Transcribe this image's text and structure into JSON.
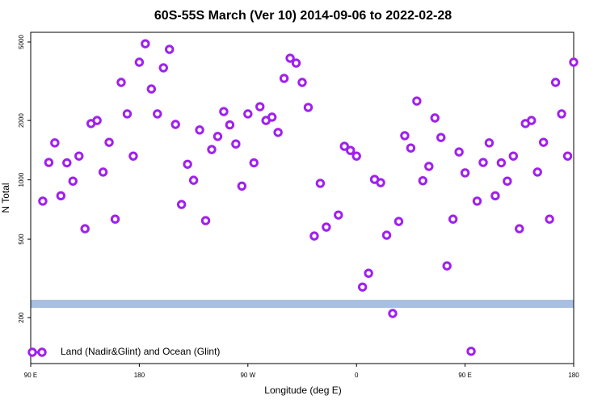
{
  "chart_data": {
    "type": "scatter",
    "title": "60S-55S March (Ver 10)   2014-09-06 to 2022-02-28",
    "x_label": "Longitude (deg E)",
    "y_label": "N Total",
    "xlim": [
      90,
      540
    ],
    "xticks": [
      {
        "value": 90,
        "label": "90 E"
      },
      180,
      {
        "value": 270,
        "label": "90 W"
      },
      {
        "value": 360,
        "label": "0"
      },
      {
        "value": 450,
        "label": "90 E"
      },
      {
        "value": 540,
        "label": "180"
      }
    ],
    "ylim": [
      117,
      5600
    ],
    "log_y": true,
    "yticks": [
      200,
      500,
      1000,
      2000,
      5000
    ],
    "legend": "bottom-left",
    "band": {
      "value": 235,
      "color": "#a7bfe0"
    },
    "series": [
      {
        "name": "Land (Nadir&Glint) and Ocean (Glint)",
        "color": "#a020f0",
        "x": [
          100,
          105,
          110,
          115,
          120,
          125,
          130,
          135,
          140,
          145,
          150,
          155,
          160,
          165,
          170,
          175,
          180,
          185,
          190,
          195,
          200,
          205,
          210,
          215,
          220,
          225,
          230,
          235,
          240,
          245,
          250,
          255,
          260,
          265,
          270,
          275,
          280,
          285,
          290,
          295,
          300,
          305,
          310,
          315,
          320,
          325,
          330,
          335,
          345,
          350,
          355,
          360,
          365,
          370,
          375,
          380,
          385,
          390,
          395,
          400,
          405,
          410,
          415,
          420,
          425,
          430,
          435,
          440,
          445,
          450,
          455,
          460,
          465,
          470,
          475,
          480,
          485,
          490,
          495,
          500,
          505,
          510,
          515,
          520,
          525,
          530,
          535,
          540
        ],
        "values": [
          780,
          1225,
          1540,
          830,
          1220,
          985,
          1320,
          565,
          1930,
          2000,
          1095,
          1550,
          632,
          3120,
          2160,
          1320,
          3950,
          4900,
          2890,
          2160,
          3700,
          4590,
          1910,
          750,
          1200,
          995,
          1790,
          621,
          1425,
          1660,
          2220,
          1900,
          1520,
          930,
          2160,
          1220,
          2350,
          2000,
          2080,
          1740,
          3270,
          4140,
          3910,
          3120,
          2330,
          519,
          960,
          576,
          663,
          1480,
          1410,
          1320,
          286,
          336,
          1005,
          968,
          524,
          210,
          615,
          1675,
          1450,
          2510,
          990,
          1170,
          2060,
          1640,
          366,
          632,
          1385,
          1085,
          135,
          780,
          1225,
          1540,
          830,
          1220,
          985,
          1320,
          565,
          1930,
          2000,
          1095,
          1550,
          632,
          3120,
          2160,
          1320,
          3950
        ]
      }
    ]
  }
}
